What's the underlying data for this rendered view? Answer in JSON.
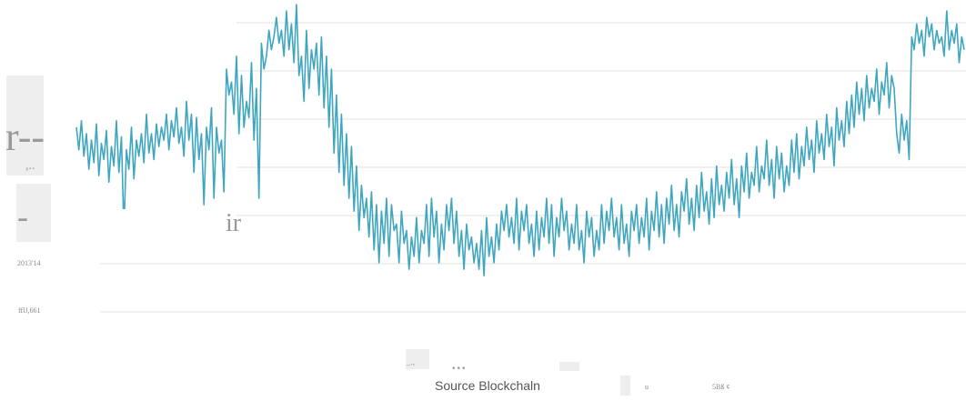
{
  "chart_data": {
    "type": "line",
    "title": "",
    "xlabel": "",
    "ylabel": "",
    "grid": true,
    "ylim": [
      0,
      100
    ],
    "ytick_labels_visible": [
      "2013'14",
      "fflJ,661"
    ],
    "overlay_glyphs": [
      "r--",
      ",..",
      "-",
      "ir",
      "...",
      "_.,"
    ],
    "series": [
      {
        "color": "#3fa6bf",
        "values": [
          62,
          55,
          64,
          53,
          60,
          49,
          58,
          51,
          63,
          47,
          57,
          52,
          61,
          45,
          56,
          50,
          64,
          48,
          59,
          30,
          55,
          49,
          62,
          46,
          58,
          53,
          60,
          51,
          66,
          54,
          60,
          52,
          63,
          56,
          62,
          58,
          66,
          55,
          64,
          59,
          68,
          57,
          62,
          53,
          70,
          58,
          66,
          48,
          65,
          52,
          60,
          38,
          62,
          55,
          68,
          40,
          62,
          54,
          58,
          42,
          80,
          72,
          76,
          66,
          84,
          60,
          78,
          62,
          70,
          65,
          82,
          58,
          74,
          40,
          88,
          80,
          84,
          92,
          86,
          90,
          96,
          88,
          92,
          84,
          98,
          86,
          94,
          82,
          100,
          78,
          84,
          70,
          92,
          74,
          86,
          80,
          88,
          72,
          90,
          68,
          84,
          62,
          80,
          54,
          72,
          48,
          66,
          44,
          60,
          40,
          56,
          36,
          50,
          30,
          44,
          34,
          40,
          28,
          42,
          24,
          38,
          20,
          36,
          26,
          40,
          22,
          38,
          30,
          32,
          20,
          36,
          26,
          30,
          18,
          28,
          22,
          34,
          20,
          30,
          26,
          38,
          22,
          40,
          28,
          36,
          20,
          32,
          24,
          38,
          30,
          40,
          26,
          36,
          22,
          30,
          18,
          32,
          24,
          28,
          20,
          26,
          18,
          30,
          16,
          34,
          22,
          28,
          20,
          32,
          24,
          36,
          30,
          38,
          28,
          34,
          26,
          40,
          24,
          36,
          30,
          38,
          26,
          32,
          22,
          36,
          24,
          34,
          28,
          40,
          26,
          38,
          22,
          34,
          28,
          40,
          30,
          36,
          24,
          32,
          26,
          38,
          24,
          30,
          20,
          36,
          28,
          34,
          22,
          30,
          24,
          38,
          26,
          36,
          30,
          40,
          28,
          34,
          24,
          38,
          26,
          32,
          22,
          36,
          30,
          38,
          26,
          34,
          28,
          40,
          24,
          36,
          30,
          42,
          28,
          38,
          26,
          40,
          32,
          44,
          30,
          38,
          28,
          42,
          36,
          46,
          32,
          40,
          30,
          44,
          34,
          48,
          36,
          42,
          32,
          46,
          34,
          50,
          38,
          44,
          36,
          48,
          40,
          52,
          38,
          46,
          34,
          50,
          42,
          54,
          40,
          48,
          44,
          56,
          42,
          50,
          46,
          58,
          44,
          52,
          40,
          56,
          46,
          54,
          42,
          50,
          44,
          58,
          48,
          60,
          46,
          56,
          50,
          62,
          52,
          58,
          48,
          64,
          54,
          60,
          52,
          66,
          56,
          62,
          50,
          68,
          58,
          64,
          56,
          70,
          60,
          72,
          62,
          76,
          66,
          74,
          64,
          78,
          68,
          74,
          70,
          80,
          66,
          76,
          72,
          82,
          68,
          78,
          74,
          60,
          54,
          66,
          58,
          64,
          52,
          90,
          86,
          94,
          88,
          92,
          84,
          96,
          90,
          94,
          86,
          92,
          88,
          90,
          84,
          98,
          86,
          92,
          88,
          94,
          82,
          90,
          86
        ]
      }
    ]
  },
  "footer": {
    "source_label": "Source Blockchaln",
    "note_u": "u",
    "note_small": "5Bß ¢"
  }
}
